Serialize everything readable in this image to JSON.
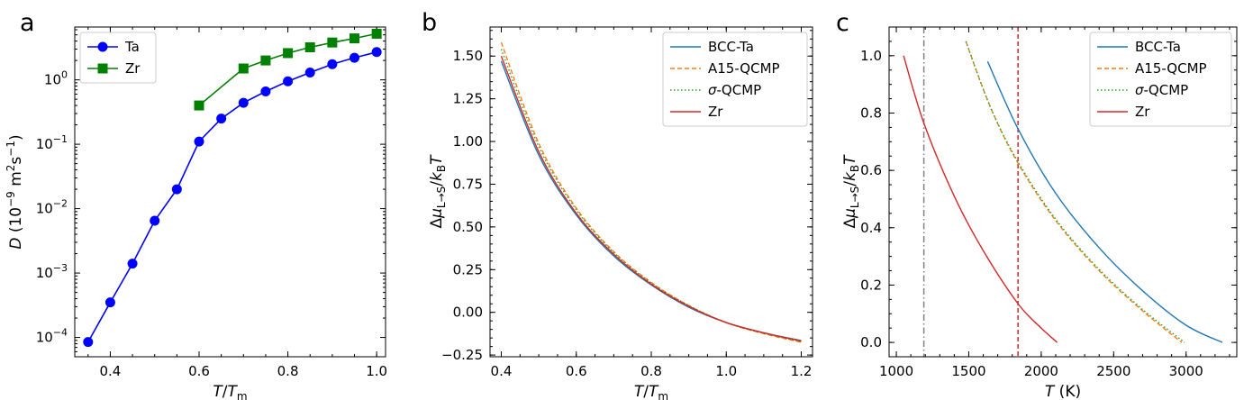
{
  "chart_data": [
    {
      "panel": "a",
      "type": "scatter",
      "xlabel": "T/T",
      "xlabel_sub": "m",
      "ylabel": "D (10",
      "ylabel_exp": "−9",
      "ylabel_unit": " m",
      "ylabel_unit_exp": "2",
      "ylabel_unit2": "s",
      "ylabel_unit2_exp": "−1",
      "ylabel_close": ")",
      "xlim": [
        0.32,
        1.02
      ],
      "ylim_log10": [
        -4.3,
        0.82
      ],
      "yscale": "log",
      "xticks": [
        "0.4",
        "0.6",
        "0.8",
        "1.0"
      ],
      "yticks": [
        {
          "base": "10",
          "exp": "−4",
          "v": -4
        },
        {
          "base": "10",
          "exp": "−3",
          "v": -3
        },
        {
          "base": "10",
          "exp": "−2",
          "v": -2
        },
        {
          "base": "10",
          "exp": "−1",
          "v": -1
        },
        {
          "base": "10",
          "exp": "0",
          "v": 0
        }
      ],
      "legend": "top-left",
      "series": [
        {
          "name": "Ta",
          "color": "#0000ff",
          "marker": "circle",
          "x": [
            0.35,
            0.4,
            0.45,
            0.5,
            0.55,
            0.6,
            0.65,
            0.7,
            0.75,
            0.8,
            0.85,
            0.9,
            0.95,
            1.0
          ],
          "y": [
            8.5e-05,
            0.00035,
            0.0014,
            0.0065,
            0.02,
            0.11,
            0.25,
            0.44,
            0.66,
            0.95,
            1.3,
            1.75,
            2.2,
            2.7
          ]
        },
        {
          "name": "Zr",
          "color": "#008000",
          "marker": "square",
          "x": [
            0.6,
            0.7,
            0.75,
            0.8,
            0.85,
            0.9,
            0.95,
            1.0
          ],
          "y": [
            0.4,
            1.5,
            2.0,
            2.6,
            3.2,
            3.8,
            4.4,
            5.2
          ]
        }
      ]
    },
    {
      "panel": "b",
      "type": "line",
      "xlabel": "T/T",
      "xlabel_sub": "m",
      "ylabel": "Δμ",
      "ylabel_sub": "L→S",
      "ylabel_mid": "/k",
      "ylabel_sub2": "B",
      "ylabel_end": "T",
      "xlim": [
        0.37,
        1.23
      ],
      "ylim": [
        -0.26,
        1.67
      ],
      "xticks": [
        0.4,
        0.6,
        0.8,
        1.0,
        1.2
      ],
      "xtick_labels": [
        "0.4",
        "0.6",
        "0.8",
        "1.0",
        "1.2"
      ],
      "yticks": [
        -0.25,
        0.0,
        0.25,
        0.5,
        0.75,
        1.0,
        1.25,
        1.5
      ],
      "ytick_labels": [
        "−0.25",
        "0.00",
        "0.25",
        "0.50",
        "0.75",
        "1.00",
        "1.25",
        "1.50"
      ],
      "legend": "top-right",
      "series": [
        {
          "name": "BCC-Ta",
          "color": "#1f77b4",
          "dash": "none",
          "x": [
            0.4,
            0.5,
            0.6,
            0.7,
            0.8,
            0.9,
            1.0,
            1.1,
            1.2
          ],
          "y": [
            1.47,
            0.92,
            0.57,
            0.33,
            0.16,
            0.03,
            -0.06,
            -0.12,
            -0.165
          ]
        },
        {
          "name": "A15-QCMP",
          "color": "#ff7f0e",
          "dash": "5,3",
          "x": [
            0.4,
            0.5,
            0.6,
            0.7,
            0.8,
            0.9,
            1.0,
            1.1,
            1.2
          ],
          "y": [
            1.58,
            0.99,
            0.61,
            0.355,
            0.175,
            0.04,
            -0.06,
            -0.125,
            -0.175
          ]
        },
        {
          "name": "σ-QCMP",
          "color": "#2ca02c",
          "dash": "1.5,2.5",
          "x": [
            0.4,
            0.5,
            0.6,
            0.7,
            0.8,
            0.9,
            1.0,
            1.1,
            1.2
          ],
          "y": [
            1.54,
            0.97,
            0.6,
            0.35,
            0.172,
            0.04,
            -0.06,
            -0.123,
            -0.172
          ]
        },
        {
          "name": "Zr",
          "color": "#d62728",
          "dash": "none",
          "x": [
            0.4,
            0.5,
            0.6,
            0.7,
            0.8,
            0.9,
            1.0,
            1.1,
            1.2
          ],
          "y": [
            1.5,
            0.94,
            0.58,
            0.34,
            0.165,
            0.035,
            -0.06,
            -0.12,
            -0.168
          ]
        }
      ]
    },
    {
      "panel": "c",
      "type": "line",
      "xlabel": "T (K)",
      "ylabel": "Δμ",
      "ylabel_sub": "L→S",
      "ylabel_mid": "/k",
      "ylabel_sub2": "B",
      "ylabel_end": "T",
      "xlim": [
        950,
        3350
      ],
      "ylim": [
        -0.05,
        1.1
      ],
      "xticks": [
        1000,
        1500,
        2000,
        2500,
        3000
      ],
      "xtick_labels": [
        "1000",
        "1500",
        "2000",
        "2500",
        "3000"
      ],
      "yticks": [
        0.0,
        0.2,
        0.4,
        0.6,
        0.8,
        1.0
      ],
      "ytick_labels": [
        "0.0",
        "0.2",
        "0.4",
        "0.6",
        "0.8",
        "1.0"
      ],
      "legend": "top-right",
      "vlines": [
        {
          "x": 1190,
          "color": "#808080",
          "dash": "7,3,1.5,3"
        },
        {
          "x": 1840,
          "color": "#d62728",
          "dash": "5,3"
        }
      ],
      "series": [
        {
          "name": "BCC-Ta",
          "color": "#1f77b4",
          "dash": "none",
          "x": [
            1630,
            1840,
            2100,
            2400,
            2700,
            3000,
            3250
          ],
          "y": [
            0.98,
            0.745,
            0.52,
            0.33,
            0.18,
            0.06,
            0.0
          ]
        },
        {
          "name": "A15-QCMP",
          "color": "#ff7f0e",
          "dash": "5,3",
          "x": [
            1480,
            1650,
            1840,
            2100,
            2400,
            2700,
            2970
          ],
          "y": [
            1.05,
            0.82,
            0.625,
            0.425,
            0.25,
            0.11,
            0.0
          ]
        },
        {
          "name": "σ-QCMP",
          "color": "#2ca02c",
          "dash": "1.5,2.5",
          "x": [
            1480,
            1650,
            1840,
            2100,
            2400,
            2700,
            2990
          ],
          "y": [
            1.05,
            0.82,
            0.63,
            0.43,
            0.255,
            0.115,
            0.0
          ]
        },
        {
          "name": "Zr",
          "color": "#d62728",
          "dash": "none",
          "x": [
            1050,
            1190,
            1400,
            1600,
            1840,
            2000,
            2110
          ],
          "y": [
            1.0,
            0.765,
            0.51,
            0.32,
            0.135,
            0.05,
            0.0
          ]
        }
      ]
    }
  ]
}
